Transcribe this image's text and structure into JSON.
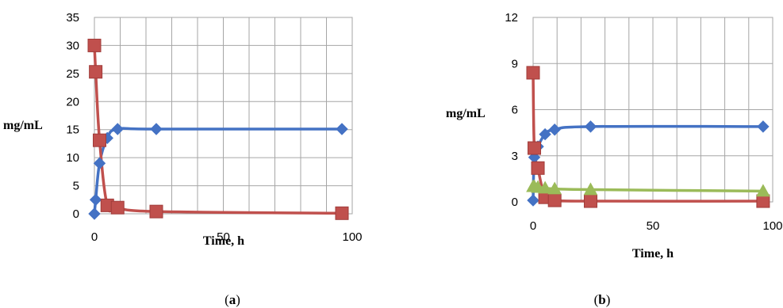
{
  "chart_data": [
    {
      "type": "line",
      "panel_label": "a",
      "xlabel": "Time, h",
      "ylabel": "mg/mL",
      "xlim": [
        0,
        100
      ],
      "ylim": [
        0,
        35
      ],
      "xticks": [
        0,
        50,
        100
      ],
      "yticks": [
        0,
        5,
        10,
        15,
        20,
        25,
        30,
        35
      ],
      "grid": true,
      "series": [
        {
          "color": "#4472c4",
          "marker": "diamond",
          "x": [
            0,
            0.5,
            2,
            5,
            9,
            24,
            96
          ],
          "y": [
            0,
            2.5,
            9,
            13.5,
            15.1,
            15.1,
            15.1
          ]
        },
        {
          "color": "#c0504d",
          "marker": "square",
          "x": [
            0,
            0.5,
            2,
            5,
            9,
            24,
            96
          ],
          "y": [
            30,
            25.3,
            13.1,
            1.5,
            1.1,
            0.4,
            0.1
          ]
        }
      ]
    },
    {
      "type": "line",
      "panel_label": "b",
      "xlabel": "Time, h",
      "ylabel": "mg/mL",
      "xlim": [
        0,
        100
      ],
      "ylim": [
        0,
        12
      ],
      "xticks": [
        0,
        50,
        100
      ],
      "yticks": [
        0,
        3,
        6,
        9,
        12
      ],
      "grid": true,
      "series": [
        {
          "color": "#4472c4",
          "marker": "diamond",
          "x": [
            0,
            0.5,
            2,
            5,
            9,
            24,
            96
          ],
          "y": [
            0.1,
            2.9,
            3.6,
            4.4,
            4.7,
            4.9,
            4.9
          ]
        },
        {
          "color": "#c0504d",
          "marker": "square",
          "x": [
            0,
            0.5,
            2,
            5,
            9,
            24,
            96
          ],
          "y": [
            8.4,
            3.5,
            2.2,
            0.3,
            0.1,
            0.05,
            0.05
          ]
        },
        {
          "color": "#9bbb59",
          "marker": "triangle",
          "x": [
            0,
            0.5,
            2,
            5,
            9,
            24,
            96
          ],
          "y": [
            1.0,
            1.0,
            0.95,
            0.9,
            0.85,
            0.8,
            0.7
          ]
        }
      ]
    }
  ]
}
